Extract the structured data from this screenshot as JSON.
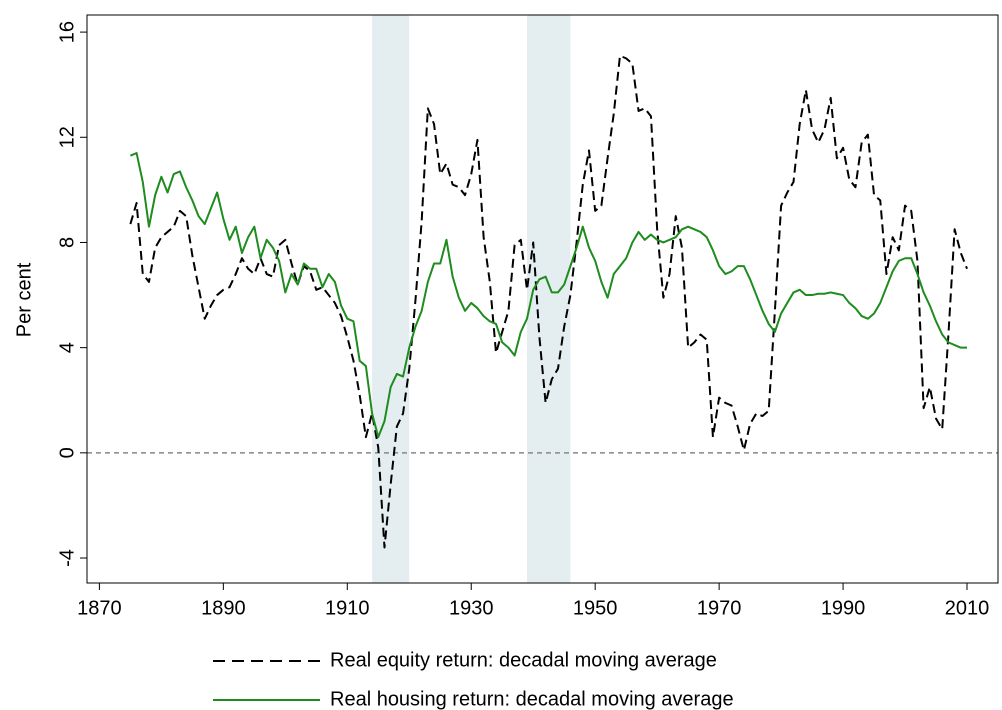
{
  "chart_data": {
    "type": "line",
    "ylabel": "Per cent",
    "x": [
      1875,
      1876,
      1877,
      1878,
      1879,
      1880,
      1881,
      1882,
      1883,
      1884,
      1885,
      1886,
      1887,
      1888,
      1889,
      1890,
      1891,
      1892,
      1893,
      1894,
      1895,
      1896,
      1897,
      1898,
      1899,
      1900,
      1901,
      1902,
      1903,
      1904,
      1905,
      1906,
      1907,
      1908,
      1909,
      1910,
      1911,
      1912,
      1913,
      1914,
      1915,
      1916,
      1917,
      1918,
      1919,
      1920,
      1921,
      1922,
      1923,
      1924,
      1925,
      1926,
      1927,
      1928,
      1929,
      1930,
      1931,
      1932,
      1933,
      1934,
      1935,
      1936,
      1937,
      1938,
      1939,
      1940,
      1941,
      1942,
      1943,
      1944,
      1945,
      1946,
      1947,
      1948,
      1949,
      1950,
      1951,
      1952,
      1953,
      1954,
      1955,
      1956,
      1957,
      1958,
      1959,
      1960,
      1961,
      1962,
      1963,
      1964,
      1965,
      1966,
      1967,
      1968,
      1969,
      1970,
      1971,
      1972,
      1973,
      1974,
      1975,
      1976,
      1977,
      1978,
      1979,
      1980,
      1981,
      1982,
      1983,
      1984,
      1985,
      1986,
      1987,
      1988,
      1989,
      1990,
      1991,
      1992,
      1993,
      1994,
      1995,
      1996,
      1997,
      1998,
      1999,
      2000,
      2001,
      2002,
      2003,
      2004,
      2005,
      2006,
      2007,
      2008,
      2009,
      2010
    ],
    "series": [
      {
        "name": "Real equity return: decadal moving average",
        "color": "#000000",
        "dashed": true,
        "values": [
          8.7,
          9.5,
          6.8,
          6.5,
          7.8,
          8.2,
          8.4,
          8.6,
          9.2,
          9.0,
          7.5,
          6.3,
          5.1,
          5.6,
          6.0,
          6.2,
          6.3,
          6.8,
          7.4,
          7.0,
          6.8,
          7.4,
          6.8,
          6.7,
          7.9,
          8.1,
          7.2,
          6.4,
          7.1,
          6.9,
          6.2,
          6.3,
          6.0,
          5.7,
          5.2,
          4.4,
          3.5,
          2.2,
          0.6,
          1.5,
          0.2,
          -3.6,
          -1.2,
          1.0,
          1.5,
          3.2,
          5.8,
          8.8,
          13.1,
          12.5,
          10.6,
          11.0,
          10.2,
          10.1,
          9.8,
          10.6,
          11.9,
          8.2,
          6.5,
          3.8,
          4.6,
          5.4,
          7.9,
          8.1,
          6.2,
          8.0,
          4.4,
          1.9,
          2.8,
          3.2,
          4.8,
          6.0,
          8.0,
          10.2,
          11.5,
          9.2,
          9.4,
          11.2,
          12.9,
          15.1,
          15.0,
          14.8,
          13.0,
          13.1,
          12.8,
          8.5,
          5.9,
          6.8,
          9.0,
          7.8,
          4.0,
          4.2,
          4.5,
          4.3,
          0.6,
          2.1,
          1.9,
          1.8,
          1.0,
          0.1,
          1.1,
          1.5,
          1.4,
          1.6,
          5.4,
          9.4,
          9.9,
          10.3,
          12.5,
          13.8,
          12.3,
          11.8,
          12.3,
          13.5,
          11.2,
          11.6,
          10.4,
          10.1,
          11.8,
          12.1,
          9.8,
          9.6,
          6.8,
          8.2,
          7.7,
          9.4,
          9.2,
          7.3,
          1.7,
          2.5,
          1.3,
          0.9,
          4.5,
          8.5,
          7.6,
          7.0
        ]
      },
      {
        "name": "Real housing return: decadal moving average",
        "color": "#1e8c1e",
        "dashed": false,
        "values": [
          11.3,
          11.4,
          10.3,
          8.6,
          9.8,
          10.5,
          9.9,
          10.6,
          10.7,
          10.1,
          9.6,
          9.0,
          8.7,
          9.3,
          9.9,
          8.9,
          8.1,
          8.6,
          7.6,
          8.2,
          8.6,
          7.4,
          8.1,
          7.8,
          7.3,
          6.1,
          6.8,
          6.4,
          7.2,
          7.0,
          7.0,
          6.3,
          6.8,
          6.5,
          5.6,
          5.1,
          5.0,
          3.5,
          3.3,
          1.5,
          0.6,
          1.2,
          2.5,
          3.0,
          2.9,
          4.0,
          4.8,
          5.4,
          6.5,
          7.2,
          7.2,
          8.1,
          6.7,
          5.9,
          5.4,
          5.7,
          5.5,
          5.2,
          5.0,
          4.9,
          4.2,
          4.0,
          3.7,
          4.6,
          5.1,
          6.2,
          6.6,
          6.7,
          6.1,
          6.1,
          6.4,
          7.1,
          7.8,
          8.6,
          7.8,
          7.3,
          6.5,
          5.9,
          6.8,
          7.1,
          7.4,
          8.0,
          8.4,
          8.1,
          8.3,
          8.1,
          8.0,
          8.1,
          8.2,
          8.5,
          8.6,
          8.5,
          8.4,
          8.2,
          7.7,
          7.1,
          6.8,
          6.9,
          7.1,
          7.1,
          6.6,
          6.0,
          5.4,
          4.9,
          4.6,
          5.3,
          5.7,
          6.1,
          6.2,
          6.0,
          6.0,
          6.05,
          6.05,
          6.1,
          6.05,
          6.0,
          5.7,
          5.5,
          5.2,
          5.1,
          5.3,
          5.7,
          6.3,
          6.9,
          7.3,
          7.4,
          7.4,
          6.8,
          6.1,
          5.6,
          5.0,
          4.5,
          4.2,
          4.1,
          4.0,
          4.0
        ]
      }
    ],
    "shaded_periods": [
      [
        1914,
        1920
      ],
      [
        1939,
        1946
      ]
    ],
    "shade_color": "#e4eef0",
    "reference_line": 0,
    "xlim": [
      1868,
      2015
    ],
    "xticks": [
      1870,
      1890,
      1910,
      1930,
      1950,
      1970,
      1990,
      2010
    ],
    "ylim": [
      -4.95,
      16.65
    ],
    "yticks": [
      -4,
      0,
      4,
      8,
      12,
      16
    ],
    "legend": "bottom"
  }
}
